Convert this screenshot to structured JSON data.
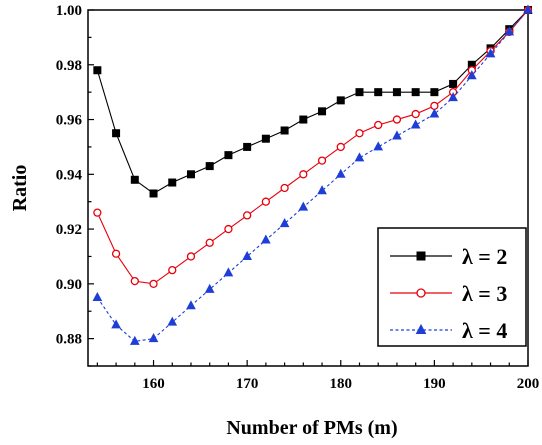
{
  "chart_data": {
    "type": "line",
    "title": "",
    "xlabel": "Number of PMs (m)",
    "ylabel": "Ratio",
    "xlim": [
      153,
      200
    ],
    "ylim": [
      0.87,
      1.0
    ],
    "xticks": [
      160,
      170,
      180,
      190,
      200
    ],
    "yticks": [
      0.88,
      0.9,
      0.92,
      0.94,
      0.96,
      0.98,
      1.0
    ],
    "ytick_labels": [
      "0.88",
      "0.90",
      "0.92",
      "0.94",
      "0.96",
      "0.98",
      "1.00"
    ],
    "grid": false,
    "legend_position": "bottom-right",
    "x": [
      154,
      156,
      158,
      160,
      162,
      164,
      166,
      168,
      170,
      172,
      174,
      176,
      178,
      180,
      182,
      184,
      186,
      188,
      190,
      192,
      194,
      196,
      198,
      200
    ],
    "series": [
      {
        "name": "λ = 2",
        "color": "#000000",
        "marker": "square",
        "marker_fill": "filled",
        "line_style": "solid",
        "values": [
          0.978,
          0.955,
          0.938,
          0.933,
          0.937,
          0.94,
          0.943,
          0.947,
          0.95,
          0.953,
          0.956,
          0.96,
          0.963,
          0.967,
          0.97,
          0.97,
          0.97,
          0.97,
          0.97,
          0.973,
          0.98,
          0.986,
          0.993,
          1.0
        ]
      },
      {
        "name": "λ = 3",
        "color": "#e8000b",
        "marker": "circle",
        "marker_fill": "open",
        "line_style": "solid",
        "values": [
          0.926,
          0.911,
          0.901,
          0.9,
          0.905,
          0.91,
          0.915,
          0.92,
          0.925,
          0.93,
          0.935,
          0.94,
          0.945,
          0.95,
          0.955,
          0.958,
          0.96,
          0.962,
          0.965,
          0.97,
          0.978,
          0.985,
          0.992,
          1.0
        ]
      },
      {
        "name": "λ = 4",
        "color": "#1f3ed6",
        "marker": "triangle",
        "marker_fill": "filled",
        "line_style": "dashed",
        "values": [
          0.895,
          0.885,
          0.879,
          0.88,
          0.886,
          0.892,
          0.898,
          0.904,
          0.91,
          0.916,
          0.922,
          0.928,
          0.934,
          0.94,
          0.946,
          0.95,
          0.954,
          0.958,
          0.962,
          0.968,
          0.976,
          0.984,
          0.992,
          1.0
        ]
      }
    ]
  }
}
